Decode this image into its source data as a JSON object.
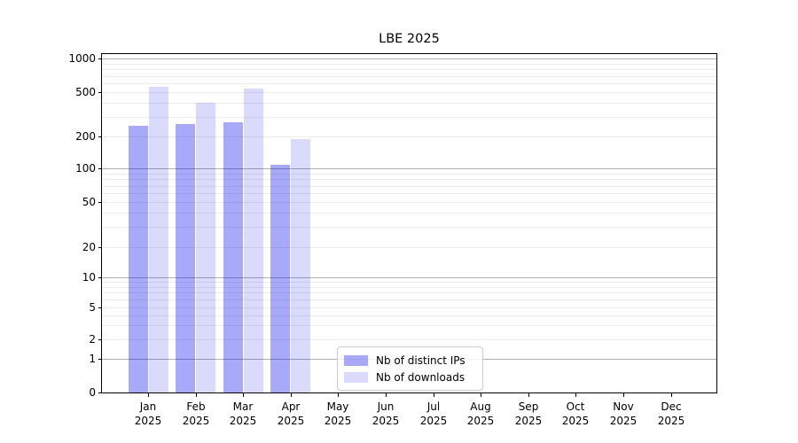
{
  "figure": {
    "background": "#ffffff"
  },
  "chart_data": {
    "type": "bar",
    "title": "LBE 2025",
    "categories": [
      {
        "month": "Jan",
        "year": "2025"
      },
      {
        "month": "Feb",
        "year": "2025"
      },
      {
        "month": "Mar",
        "year": "2025"
      },
      {
        "month": "Apr",
        "year": "2025"
      },
      {
        "month": "May",
        "year": "2025"
      },
      {
        "month": "Jun",
        "year": "2025"
      },
      {
        "month": "Jul",
        "year": "2025"
      },
      {
        "month": "Aug",
        "year": "2025"
      },
      {
        "month": "Sep",
        "year": "2025"
      },
      {
        "month": "Oct",
        "year": "2025"
      },
      {
        "month": "Nov",
        "year": "2025"
      },
      {
        "month": "Dec",
        "year": "2025"
      }
    ],
    "series": [
      {
        "name": "Nb of distinct IPs",
        "color": "rgba(10,10,240,0.35)",
        "rendered_hex": "#a9a9fa",
        "values": [
          250,
          258,
          270,
          108,
          0,
          0,
          0,
          0,
          0,
          0,
          0,
          0
        ]
      },
      {
        "name": "Nb of downloads",
        "color": "rgba(10,10,240,0.15)",
        "rendered_hex": "#dadafa",
        "values": [
          560,
          400,
          540,
          190,
          0,
          0,
          0,
          0,
          0,
          0,
          0,
          0
        ]
      }
    ],
    "y_axis": {
      "scale": "log-like with zero baseline",
      "range": [
        0,
        1000
      ],
      "ticks": [
        {
          "value": 0,
          "label": "0"
        },
        {
          "value": 1,
          "label": "1"
        },
        {
          "value": 2,
          "label": "2"
        },
        {
          "value": 5,
          "label": "5"
        },
        {
          "value": 10,
          "label": "10"
        },
        {
          "value": 20,
          "label": "20"
        },
        {
          "value": 50,
          "label": "50"
        },
        {
          "value": 100,
          "label": "100"
        },
        {
          "value": 200,
          "label": "200"
        },
        {
          "value": 500,
          "label": "500"
        },
        {
          "value": 1000,
          "label": "1000"
        }
      ]
    },
    "grid": true,
    "legend_position": "bottom-center",
    "colors": {
      "major_grid": "#b0b0b0",
      "minor_grid": "#ebebeb",
      "axis": "#000000"
    }
  }
}
